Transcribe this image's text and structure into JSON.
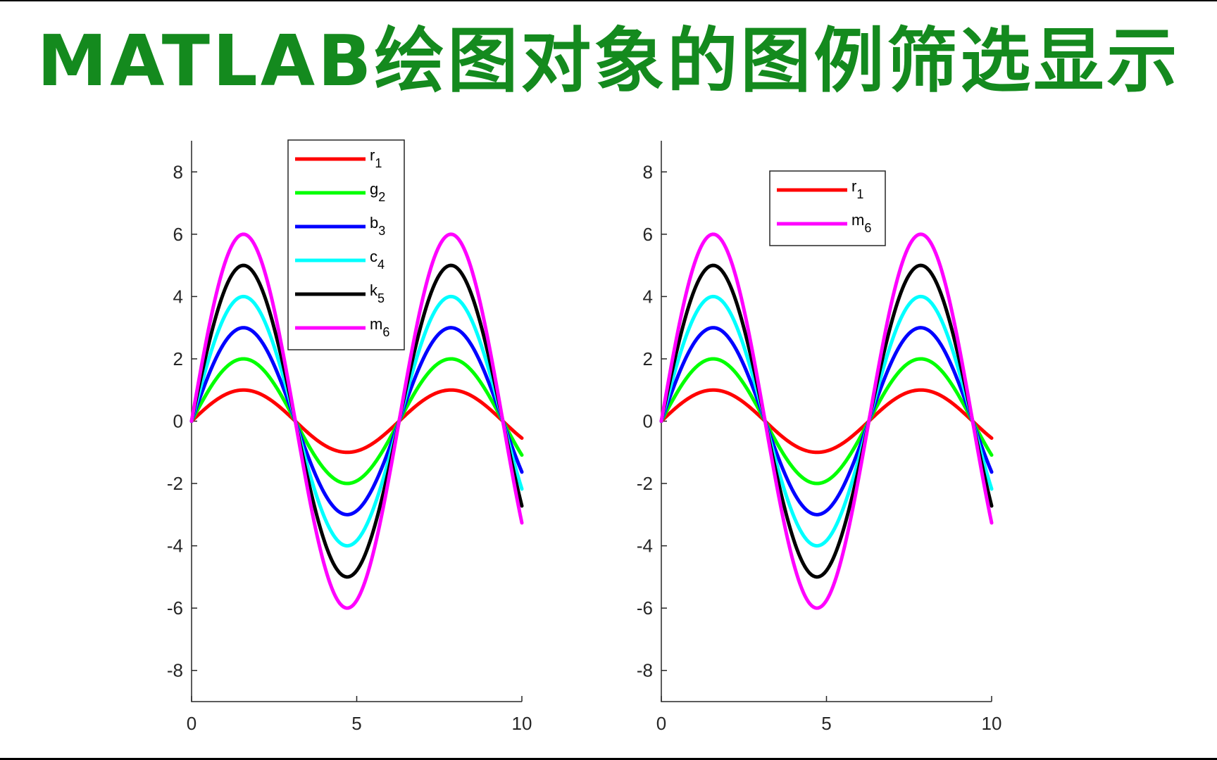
{
  "page": {
    "title": "MATLAB绘图对象的图例筛选显示",
    "title_color": "#148a1e"
  },
  "chart_data": [
    {
      "type": "line",
      "xlim": [
        0,
        10
      ],
      "ylim": [
        -9,
        9
      ],
      "xticks": [
        0,
        5,
        10
      ],
      "yticks": [
        -8,
        -6,
        -4,
        -2,
        0,
        2,
        4,
        6,
        8
      ],
      "grid": false,
      "legend_position": "top-center",
      "function": "amplitude * sin(x)",
      "series": [
        {
          "name": "r",
          "subscript": "1",
          "amplitude": 1,
          "color": "#ff0000"
        },
        {
          "name": "g",
          "subscript": "2",
          "amplitude": 2,
          "color": "#00ff00"
        },
        {
          "name": "b",
          "subscript": "3",
          "amplitude": 3,
          "color": "#0000ff"
        },
        {
          "name": "c",
          "subscript": "4",
          "amplitude": 4,
          "color": "#00ffff"
        },
        {
          "name": "k",
          "subscript": "5",
          "amplitude": 5,
          "color": "#000000"
        },
        {
          "name": "m",
          "subscript": "6",
          "amplitude": 6,
          "color": "#ff00ff"
        }
      ],
      "legend_entries": [
        {
          "name": "r",
          "subscript": "1",
          "color": "#ff0000"
        },
        {
          "name": "g",
          "subscript": "2",
          "color": "#00ff00"
        },
        {
          "name": "b",
          "subscript": "3",
          "color": "#0000ff"
        },
        {
          "name": "c",
          "subscript": "4",
          "color": "#00ffff"
        },
        {
          "name": "k",
          "subscript": "5",
          "color": "#000000"
        },
        {
          "name": "m",
          "subscript": "6",
          "color": "#ff00ff"
        }
      ]
    },
    {
      "type": "line",
      "xlim": [
        0,
        10
      ],
      "ylim": [
        -9,
        9
      ],
      "xticks": [
        0,
        5,
        10
      ],
      "yticks": [
        -8,
        -6,
        -4,
        -2,
        0,
        2,
        4,
        6,
        8
      ],
      "grid": false,
      "legend_position": "top-center",
      "function": "amplitude * sin(x)",
      "series": [
        {
          "name": "r",
          "subscript": "1",
          "amplitude": 1,
          "color": "#ff0000"
        },
        {
          "name": "g",
          "subscript": "2",
          "amplitude": 2,
          "color": "#00ff00"
        },
        {
          "name": "b",
          "subscript": "3",
          "amplitude": 3,
          "color": "#0000ff"
        },
        {
          "name": "c",
          "subscript": "4",
          "amplitude": 4,
          "color": "#00ffff"
        },
        {
          "name": "k",
          "subscript": "5",
          "amplitude": 5,
          "color": "#000000"
        },
        {
          "name": "m",
          "subscript": "6",
          "amplitude": 6,
          "color": "#ff00ff"
        }
      ],
      "legend_entries": [
        {
          "name": "r",
          "subscript": "1",
          "color": "#ff0000"
        },
        {
          "name": "m",
          "subscript": "6",
          "color": "#ff00ff"
        }
      ]
    }
  ]
}
